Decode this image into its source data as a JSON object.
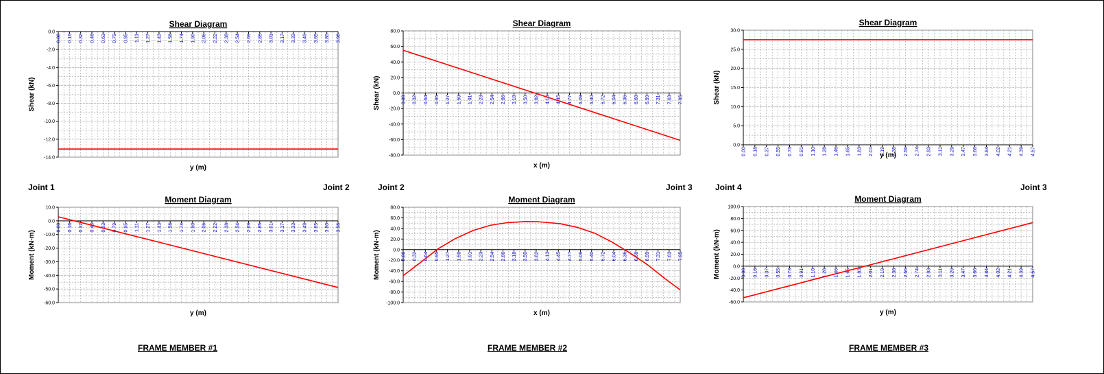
{
  "colors": {
    "curve": "#ff0000",
    "tick_label_x": "#0000cc",
    "grid": "#a0a0a0",
    "axis": "#000000",
    "text": "#000000"
  },
  "members": [
    {
      "label": "FRAME MEMBER #1",
      "joint_left": "Joint 1",
      "joint_right": "Joint 2"
    },
    {
      "label": "FRAME MEMBER #2",
      "joint_left": "Joint 2",
      "joint_right": "Joint 3"
    },
    {
      "label": "FRAME MEMBER #3",
      "joint_left": "Joint 4",
      "joint_right": "Joint 3"
    }
  ],
  "chart_data": [
    {
      "id": "shear-1",
      "type": "line",
      "title": "Shear Diagram",
      "xlabel": "y (m)",
      "ylabel": "Shear (kN)",
      "ylim": [
        -14,
        0
      ],
      "y_ticks": [
        "0.0",
        "-2.0",
        "-4.0",
        "-6.0",
        "-8.0",
        "-10.0",
        "-12.0",
        "-14.0"
      ],
      "x_ticks": [
        "0.00",
        "0.16",
        "0.32",
        "0.48",
        "0.63",
        "0.79",
        "0.95",
        "1.11",
        "1.27",
        "1.43",
        "1.58",
        "1.74",
        "1.90",
        "2.06",
        "2.22",
        "2.38",
        "2.54",
        "2.69",
        "2.85",
        "3.01",
        "3.17",
        "3.33",
        "3.49",
        "3.65",
        "3.80",
        "3.96"
      ],
      "xlim": [
        0,
        3.96
      ],
      "grid": true,
      "series": [
        {
          "x": [
            0,
            3.96
          ],
          "values": [
            -13.1,
            -13.1
          ]
        }
      ]
    },
    {
      "id": "shear-2",
      "type": "line",
      "title": "Shear Diagram",
      "xlabel": "x (m)",
      "ylabel": "Shear (kN)",
      "ylim": [
        -80,
        80
      ],
      "y_ticks": [
        "80.0",
        "60.0",
        "40.0",
        "20.0",
        "0.0",
        "-20.0",
        "-40.0",
        "-60.0",
        "-80.0"
      ],
      "x_ticks": [
        "0.00",
        "0.32",
        "0.64",
        "0.95",
        "1.27",
        "1.59",
        "1.91",
        "2.23",
        "2.54",
        "2.86",
        "3.18",
        "3.50",
        "3.82",
        "4.13",
        "4.45",
        "4.77",
        "5.09",
        "5.40",
        "5.72",
        "6.04",
        "6.36",
        "6.68",
        "6.99",
        "7.31",
        "7.63",
        "7.95"
      ],
      "xlim": [
        0,
        7.95
      ],
      "grid": true,
      "series": [
        {
          "x": [
            0,
            7.95
          ],
          "values": [
            55,
            -61
          ]
        }
      ]
    },
    {
      "id": "shear-3",
      "type": "line",
      "title": "Shear Diagram",
      "xlabel": "y (m)",
      "ylabel": "Shear (kN)",
      "ylim": [
        0,
        30
      ],
      "y_ticks": [
        "30.0",
        "25.0",
        "20.0",
        "15.0",
        "10.0",
        "5.0",
        "0.0"
      ],
      "x_ticks": [
        "0.00",
        "0.18",
        "0.37",
        "0.55",
        "0.73",
        "0.91",
        "1.10",
        "1.28",
        "1.46",
        "1.65",
        "1.83",
        "2.01",
        "2.19",
        "2.38",
        "2.56",
        "2.74",
        "2.93",
        "3.11",
        "3.29",
        "3.47",
        "3.66",
        "3.84",
        "4.02",
        "4.21",
        "4.39",
        "4.57"
      ],
      "xlim": [
        0,
        4.57
      ],
      "grid": true,
      "series": [
        {
          "x": [
            0,
            4.57
          ],
          "values": [
            27.5,
            27.5
          ]
        }
      ]
    },
    {
      "id": "moment-1",
      "type": "line",
      "title": "Moment Diagram",
      "xlabel": "y (m)",
      "ylabel": "Moment (kN-m)",
      "ylim": [
        -60,
        10
      ],
      "y_ticks": [
        "10.0",
        "0.0",
        "-10.0",
        "-20.0",
        "-30.0",
        "-40.0",
        "-50.0",
        "-60.0"
      ],
      "x_ticks": [
        "0.00",
        "0.16",
        "0.32",
        "0.48",
        "0.63",
        "0.79",
        "0.95",
        "1.11",
        "1.27",
        "1.43",
        "1.58",
        "1.74",
        "1.90",
        "2.06",
        "2.22",
        "2.38",
        "2.54",
        "2.69",
        "2.85",
        "3.01",
        "3.17",
        "3.33",
        "3.49",
        "3.65",
        "3.80",
        "3.96"
      ],
      "xlim": [
        0,
        3.96
      ],
      "grid": true,
      "series": [
        {
          "x": [
            0,
            3.96
          ],
          "values": [
            3.0,
            -48.9
          ]
        }
      ]
    },
    {
      "id": "moment-2",
      "type": "line",
      "title": "Moment Diagram",
      "xlabel": "x (m)",
      "ylabel": "Moment (kN-m)",
      "ylim": [
        -100,
        80
      ],
      "y_ticks": [
        "80.0",
        "60.0",
        "40.0",
        "20.0",
        "0.0",
        "-20.0",
        "-40.0",
        "-60.0",
        "-80.0",
        "-100.0"
      ],
      "x_ticks": [
        "0.00",
        "0.32",
        "0.64",
        "0.95",
        "1.27",
        "1.59",
        "1.91",
        "2.23",
        "2.54",
        "2.86",
        "3.18",
        "3.50",
        "3.82",
        "4.13",
        "4.45",
        "4.77",
        "5.09",
        "5.40",
        "5.72",
        "6.04",
        "6.36",
        "6.68",
        "6.99",
        "7.31",
        "7.63",
        "7.95"
      ],
      "xlim": [
        0,
        7.95
      ],
      "grid": true,
      "series": [
        {
          "x": [
            0,
            0.5,
            1.0,
            1.5,
            2.0,
            2.5,
            3.0,
            3.5,
            3.9,
            4.5,
            5.0,
            5.5,
            6.0,
            6.5,
            7.0,
            7.5,
            7.95
          ],
          "values": [
            -49,
            -24,
            1.5,
            21,
            36,
            46,
            51,
            53,
            52.5,
            49,
            42,
            31,
            14,
            -6,
            -28,
            -54,
            -76
          ]
        }
      ]
    },
    {
      "id": "moment-3",
      "type": "line",
      "title": "Moment Diagram",
      "xlabel": "y (m)",
      "ylabel": "Moment (kN-m)",
      "ylim": [
        -60,
        100
      ],
      "y_ticks": [
        "100.0",
        "80.0",
        "60.0",
        "40.0",
        "20.0",
        "0.0",
        "-20.0",
        "-40.0",
        "-60.0"
      ],
      "x_ticks": [
        "0.00",
        "0.18",
        "0.37",
        "0.55",
        "0.73",
        "0.91",
        "1.10",
        "1.28",
        "1.46",
        "1.65",
        "1.83",
        "2.01",
        "2.19",
        "2.38",
        "2.56",
        "2.74",
        "2.93",
        "3.11",
        "3.29",
        "3.47",
        "3.66",
        "3.84",
        "4.02",
        "4.21",
        "4.39",
        "4.57"
      ],
      "xlim": [
        0,
        4.57
      ],
      "grid": true,
      "series": [
        {
          "x": [
            0,
            4.57
          ],
          "values": [
            -53,
            73
          ]
        }
      ]
    }
  ]
}
